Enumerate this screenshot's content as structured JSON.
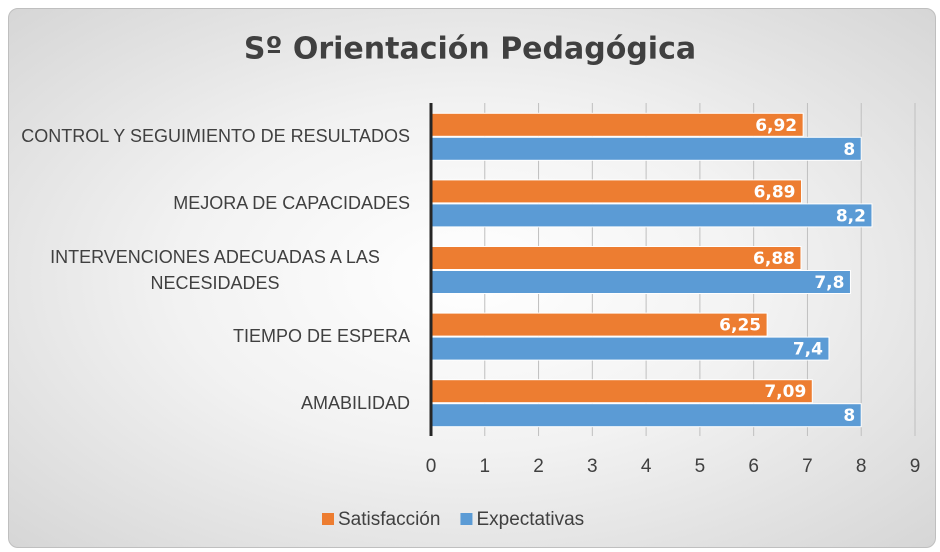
{
  "chart_data": {
    "type": "bar",
    "orientation": "horizontal",
    "title": "Sº Orientación Pedagógica",
    "categories": [
      "CONTROL Y SEGUIMIENTO DE RESULTADOS",
      "MEJORA DE CAPACIDADES",
      "INTERVENCIONES ADECUADAS A LAS NECESIDADES",
      "TIEMPO DE ESPERA",
      "AMABILIDAD"
    ],
    "series": [
      {
        "name": "Satisfacción",
        "color": "#ed7d31",
        "values": [
          6.92,
          6.89,
          6.88,
          6.25,
          7.09
        ],
        "value_labels": [
          "6,92",
          "6,89",
          "6,88",
          "6,25",
          "7,09"
        ]
      },
      {
        "name": "Expectativas",
        "color": "#5b9bd5",
        "values": [
          8,
          8.2,
          7.8,
          7.4,
          8
        ],
        "value_labels": [
          "8",
          "8,2",
          "7,8",
          "7,4",
          "8"
        ]
      }
    ],
    "xlim": [
      0,
      9
    ],
    "xticks": [
      0,
      1,
      2,
      3,
      4,
      5,
      6,
      7,
      8,
      9
    ],
    "grid": true,
    "legend": "bottom"
  }
}
